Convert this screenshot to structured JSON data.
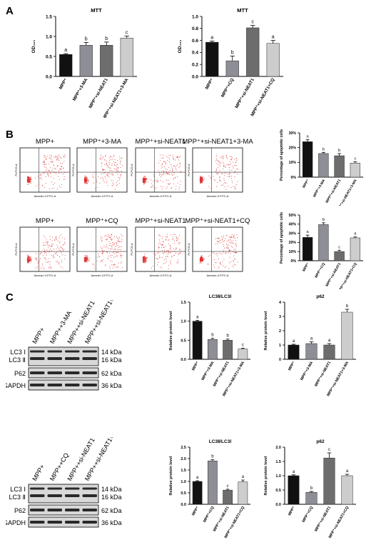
{
  "panels": {
    "A": "A",
    "B": "B",
    "C": "C"
  },
  "chart_data": [
    {
      "id": "A1",
      "type": "bar",
      "title": "MTT",
      "ylabel": "OD₄₉₀",
      "ylim": [
        0,
        1.5
      ],
      "yticks": [
        "0.0",
        "0.5",
        "1.0",
        "1.5"
      ],
      "categories": [
        "MPP⁺",
        "MPP⁺+3-MA",
        "MPP⁺+si-NEAT1",
        "MPP⁺+si-NEAT1+3-MA"
      ],
      "values": [
        0.55,
        0.78,
        0.78,
        0.96
      ],
      "errors": [
        0.02,
        0.07,
        0.08,
        0.05
      ],
      "letters": [
        "a",
        "b",
        "b",
        "c"
      ],
      "colors": [
        "#111111",
        "#8e8e96",
        "#6d6d6d",
        "#cdcdcd"
      ]
    },
    {
      "id": "A2",
      "type": "bar",
      "title": "MTT",
      "ylabel": "OD₄₉₀",
      "ylim": [
        0,
        1.0
      ],
      "yticks": [
        "0.0",
        "0.2",
        "0.4",
        "0.6",
        "0.8",
        "1.0"
      ],
      "categories": [
        "MPP⁺",
        "MPP⁺+CQ",
        "MPP⁺+si-NEAT1",
        "MPP⁺+si-NEAT1+CQ"
      ],
      "values": [
        0.57,
        0.26,
        0.81,
        0.55
      ],
      "errors": [
        0.02,
        0.08,
        0.04,
        0.05
      ],
      "letters": [
        "a",
        "b",
        "c",
        "a"
      ],
      "colors": [
        "#111111",
        "#8e8e96",
        "#6d6d6d",
        "#cdcdcd"
      ]
    },
    {
      "id": "B1",
      "type": "bar",
      "title": "",
      "ylabel": "Percentage of apoptotic cells",
      "ylim": [
        0,
        30
      ],
      "yticks": [
        "0%",
        "10%",
        "20%",
        "30%"
      ],
      "categories": [
        "MPP⁺",
        "MPP⁺+3-MA",
        "MPP⁺+si-NEAT1",
        "MPP⁺+si-NEAT1+3-MA"
      ],
      "values": [
        24,
        16,
        14.5,
        9.5
      ],
      "errors": [
        1.5,
        0.8,
        1.5,
        1.0
      ],
      "letters": [
        "a",
        "b",
        "b",
        "c"
      ],
      "colors": [
        "#111111",
        "#8e8e96",
        "#6d6d6d",
        "#cdcdcd"
      ]
    },
    {
      "id": "B2",
      "type": "bar",
      "title": "",
      "ylabel": "Percentage of apoptotic cells",
      "ylim": [
        0,
        50
      ],
      "yticks": [
        "0%",
        "10%",
        "20%",
        "30%",
        "40%",
        "50%"
      ],
      "categories": [
        "MPP⁺",
        "MPP⁺+CQ",
        "MPP⁺+si-NEAT1",
        "MPP⁺+si-NEAT1+CQ"
      ],
      "values": [
        25.5,
        39.5,
        10,
        25
      ],
      "errors": [
        2.5,
        2.0,
        1.5,
        1.0
      ],
      "letters": [
        "a",
        "b",
        "c",
        "a"
      ],
      "colors": [
        "#111111",
        "#8e8e96",
        "#6d6d6d",
        "#cdcdcd"
      ]
    },
    {
      "id": "C1",
      "type": "bar",
      "title": "LC3Ⅱ/LC3Ⅰ",
      "ylabel": "Relative protein level",
      "ylim": [
        0,
        1.5
      ],
      "yticks": [
        "0.0",
        "0.5",
        "1.0",
        "1.5"
      ],
      "categories": [
        "MPP⁺",
        "MPP⁺+3-MA",
        "MPP⁺+si-NEAT1",
        "MPP⁺+si-NEAT1+3-MA"
      ],
      "values": [
        1.0,
        0.52,
        0.5,
        0.27
      ],
      "errors": [
        0.02,
        0.03,
        0.03,
        0.02
      ],
      "letters": [
        "a",
        "b",
        "b",
        "c"
      ],
      "colors": [
        "#111111",
        "#8e8e96",
        "#6d6d6d",
        "#cdcdcd"
      ]
    },
    {
      "id": "C2",
      "type": "bar",
      "title": "p62",
      "ylabel": "Relative protein level",
      "ylim": [
        0,
        4
      ],
      "yticks": [
        "0",
        "1",
        "2",
        "3",
        "4"
      ],
      "categories": [
        "MPP⁺",
        "MPP⁺+3-MA",
        "MPP⁺+si-NEAT1",
        "MPP⁺+si-NEAT1+3-MA"
      ],
      "values": [
        1.0,
        1.1,
        1.0,
        3.3
      ],
      "errors": [
        0.05,
        0.12,
        0.1,
        0.2
      ],
      "letters": [
        "a",
        "a",
        "a",
        "b"
      ],
      "colors": [
        "#111111",
        "#8e8e96",
        "#6d6d6d",
        "#cdcdcd"
      ]
    },
    {
      "id": "C3",
      "type": "bar",
      "title": "LC3Ⅱ/LC3Ⅰ",
      "ylabel": "Relative protein level",
      "ylim": [
        0,
        2.5
      ],
      "yticks": [
        "0.0",
        "0.5",
        "1.0",
        "1.5",
        "2.0",
        "2.5"
      ],
      "categories": [
        "MPP⁺",
        "MPP⁺+CQ",
        "MPP⁺+si-NEAT1",
        "MPP⁺+si-NEAT1+CQ"
      ],
      "values": [
        1.0,
        1.9,
        0.62,
        0.98
      ],
      "errors": [
        0.03,
        0.05,
        0.04,
        0.08
      ],
      "letters": [
        "a",
        "b",
        "c",
        "a"
      ],
      "colors": [
        "#111111",
        "#8e8e96",
        "#6d6d6d",
        "#cdcdcd"
      ]
    },
    {
      "id": "C4",
      "type": "bar",
      "title": "p62",
      "ylabel": "Relative protein level",
      "ylim": [
        0,
        2.0
      ],
      "yticks": [
        "0.0",
        "0.5",
        "1.0",
        "1.5",
        "2.0"
      ],
      "categories": [
        "MPP⁺",
        "MPP⁺+CQ",
        "MPP⁺+si-NEAT1",
        "MPP⁺+si-NEAT1+CQ"
      ],
      "values": [
        1.0,
        0.42,
        1.62,
        1.0
      ],
      "errors": [
        0.03,
        0.03,
        0.18,
        0.05
      ],
      "letters": [
        "a",
        "b",
        "c",
        "a"
      ],
      "colors": [
        "#111111",
        "#8e8e96",
        "#6d6d6d",
        "#cdcdcd"
      ]
    }
  ],
  "flow": {
    "row1": [
      "MPP+",
      "MPP⁺+3-MA",
      "MPP⁺+si-NEAT1",
      "MPP⁺+si-NEAT1+3-MA"
    ],
    "row2": [
      "MPP+",
      "MPP⁺+CQ",
      "MPP⁺+si-NEAT1",
      "MPP⁺+si-NEAT1+CQ"
    ],
    "xlabel": "Annexin-V-FITC-A",
    "ylabel": "PI-PCG-A"
  },
  "western": {
    "blot1": {
      "columns": [
        "MPP+",
        "MPP++3-MA",
        "MPP++si-NEAT1",
        "MPP++si-NEAT1+3-MA"
      ],
      "rows": [
        "LC3 Ⅰ",
        "LC3 Ⅱ",
        "P62",
        "GAPDH"
      ],
      "kda": [
        "14 kDa",
        "16 kDa",
        "62 kDa",
        "36 kDa"
      ]
    },
    "blot2": {
      "columns": [
        "MPP+",
        "MPP++CQ",
        "MPP++si-NEAT1",
        "MPP++si-NEAT1+CQ"
      ],
      "rows": [
        "LC3 Ⅰ",
        "LC3 Ⅱ",
        "P62",
        "GAPDH"
      ],
      "kda": [
        "14 kDa",
        "16 kDa",
        "62 kDa",
        "36 kDa"
      ]
    }
  }
}
